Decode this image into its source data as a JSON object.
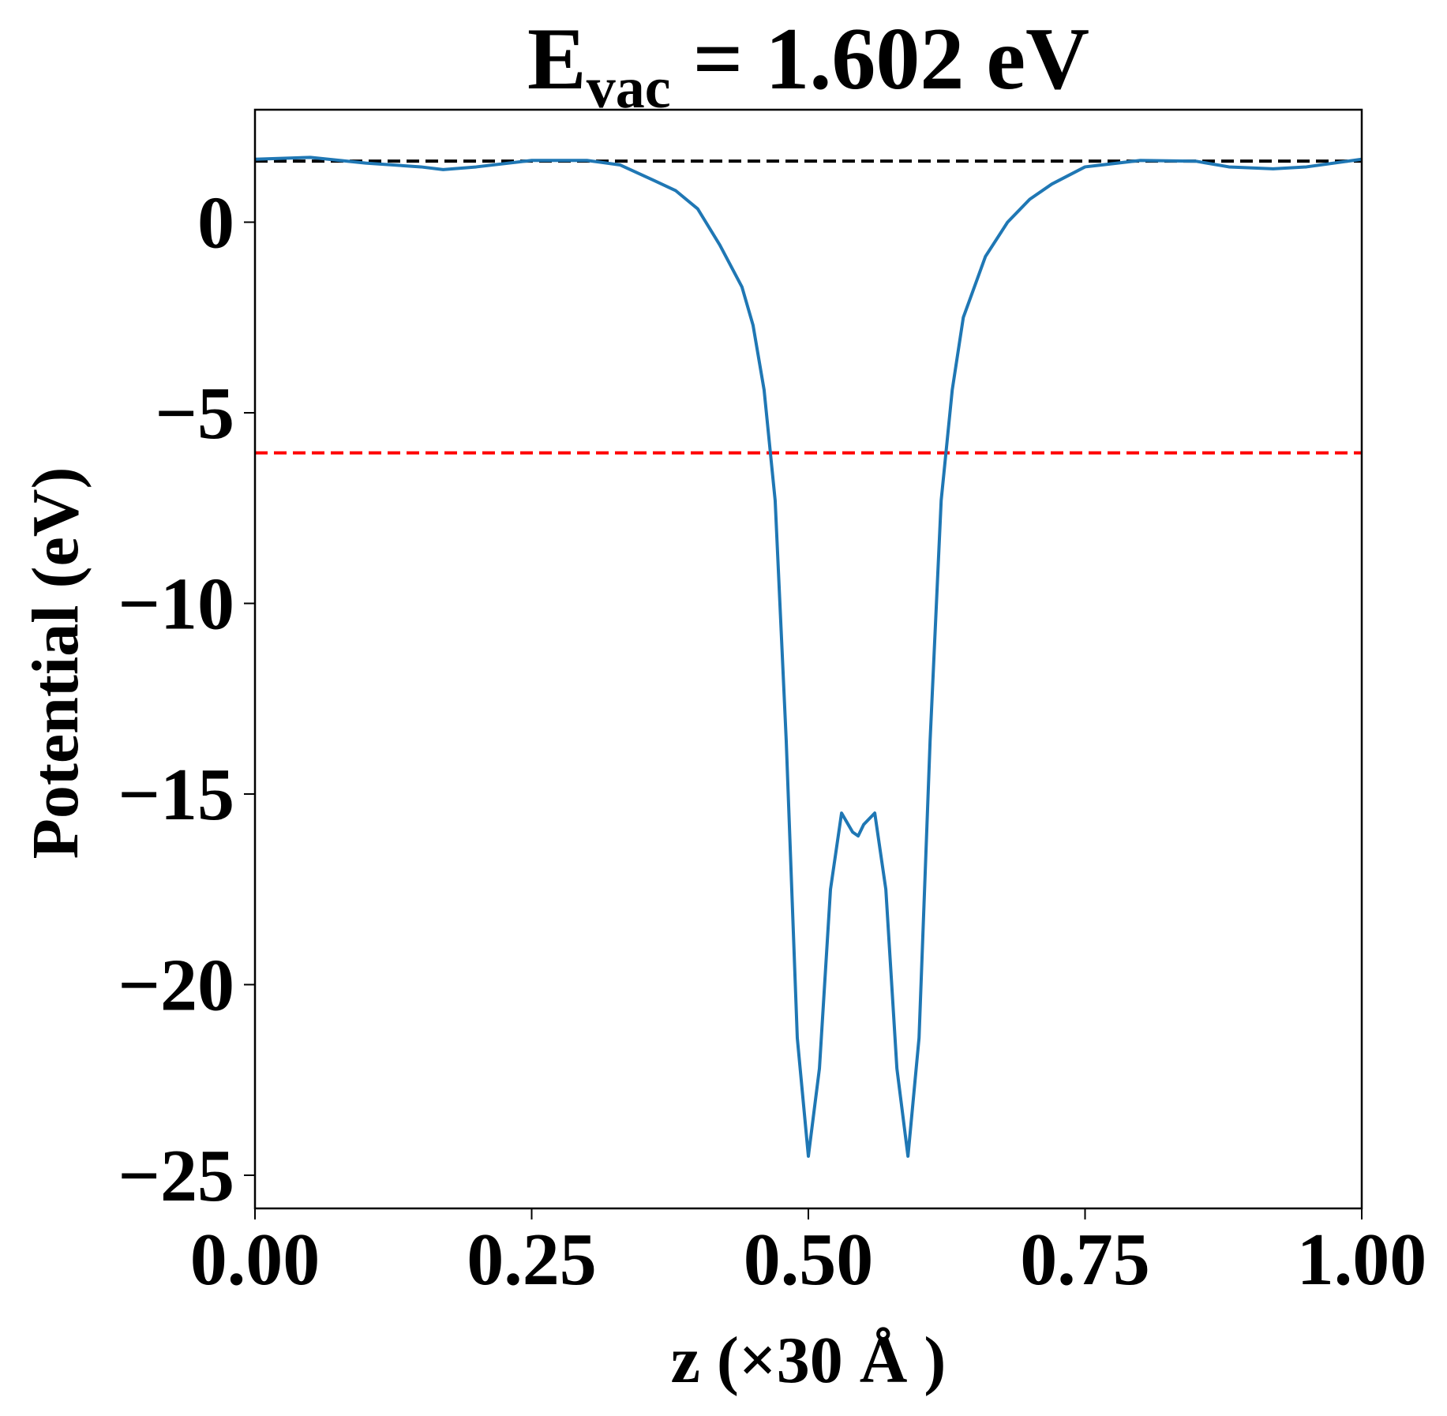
{
  "chart_data": {
    "type": "line",
    "title": {
      "main": "E",
      "sub": "vac",
      "rest": " = 1.602 eV"
    },
    "xlabel": "z (×30 Å )",
    "ylabel": "Potential (eV)",
    "xlim": [
      0,
      1
    ],
    "ylim": [
      -25.87,
      2.95
    ],
    "xticks": [
      {
        "value": 0,
        "label": "0.00"
      },
      {
        "value": 0.25,
        "label": "0.25"
      },
      {
        "value": 0.5,
        "label": "0.50"
      },
      {
        "value": 0.75,
        "label": "0.75"
      },
      {
        "value": 1,
        "label": "1.00"
      }
    ],
    "yticks": [
      0,
      {
        "value": -5,
        "label": "−5"
      },
      {
        "value": -10,
        "label": "−10"
      },
      {
        "value": -15,
        "label": "−15"
      },
      {
        "value": -20,
        "label": "−20"
      },
      {
        "value": -25,
        "label": "−25"
      }
    ],
    "hlines": [
      {
        "value": 1.602,
        "color": "#000000"
      },
      {
        "value": -6.05,
        "color": "#ff0000"
      }
    ],
    "x": [
      0,
      0.05,
      0.1,
      0.15,
      0.17,
      0.2,
      0.25,
      0.3,
      0.33,
      0.36,
      0.38,
      0.4,
      0.42,
      0.44,
      0.45,
      0.46,
      0.47,
      0.48,
      0.49,
      0.5,
      0.51,
      0.52,
      0.53,
      0.54,
      0.545,
      0.55,
      0.56,
      0.57,
      0.58,
      0.59,
      0.6,
      0.61,
      0.62,
      0.63,
      0.64,
      0.66,
      0.68,
      0.7,
      0.72,
      0.75,
      0.8,
      0.85,
      0.88,
      0.92,
      0.95,
      1.0
    ],
    "series": [
      {
        "color": "#1f77b4",
        "values": [
          1.65,
          1.7,
          1.55,
          1.45,
          1.38,
          1.45,
          1.62,
          1.62,
          1.5,
          1.1,
          0.83,
          0.35,
          -0.6,
          -1.7,
          -2.7,
          -4.4,
          -7.3,
          -13.6,
          -21.4,
          -24.5,
          -22.2,
          -17.5,
          -15.5,
          -16.0,
          -16.1,
          -15.8,
          -15.5,
          -17.5,
          -22.2,
          -24.5,
          -21.4,
          -13.6,
          -7.3,
          -4.4,
          -2.5,
          -0.9,
          0.0,
          0.6,
          1.0,
          1.45,
          1.62,
          1.6,
          1.45,
          1.4,
          1.45,
          1.65
        ]
      }
    ]
  }
}
